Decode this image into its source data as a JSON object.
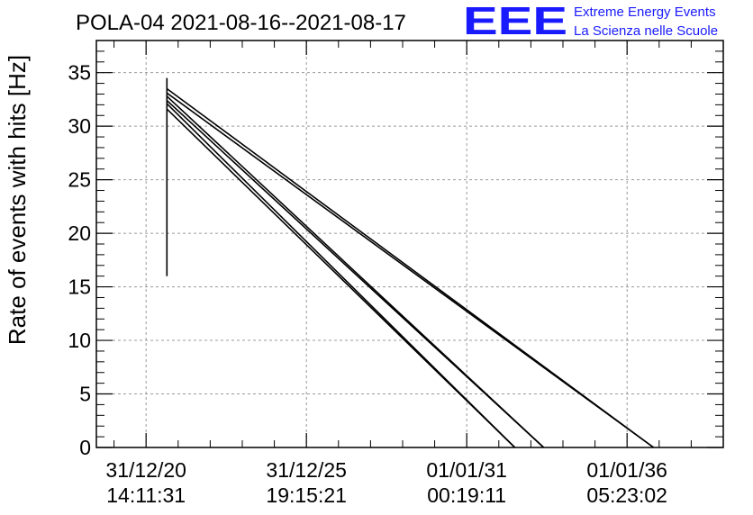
{
  "chart_data": {
    "type": "line",
    "title": "POLA-04 2021-08-16--2021-08-17",
    "ylabel": "Rate of events with hits [Hz]",
    "xlabel": "",
    "ylim": [
      0,
      38
    ],
    "xlim": [
      -0.62,
      7.2
    ],
    "y_ticks": [
      0,
      5,
      10,
      15,
      20,
      25,
      30,
      35
    ],
    "x_ticks": [
      {
        "x": 0,
        "line1": "31/12/20",
        "line2": "14:11:31"
      },
      {
        "x": 2,
        "line1": "31/12/25",
        "line2": "19:15:21"
      },
      {
        "x": 4,
        "line1": "01/01/31",
        "line2": "00:19:11"
      },
      {
        "x": 6,
        "line1": "01/01/36",
        "line2": "05:23:02"
      }
    ],
    "grid": true,
    "series": [
      {
        "values": [
          [
            0.26,
            16.0
          ],
          [
            0.26,
            34.5
          ]
        ]
      },
      {
        "values": [
          [
            0.26,
            33.5
          ],
          [
            6.33,
            0
          ]
        ]
      },
      {
        "values": [
          [
            0.26,
            33.1
          ],
          [
            6.33,
            0
          ]
        ]
      },
      {
        "values": [
          [
            0.26,
            32.8
          ],
          [
            4.96,
            0
          ]
        ]
      },
      {
        "values": [
          [
            0.26,
            32.4
          ],
          [
            4.96,
            0
          ]
        ]
      },
      {
        "values": [
          [
            0.26,
            32.1
          ],
          [
            4.6,
            0
          ]
        ]
      },
      {
        "values": [
          [
            0.26,
            31.6
          ],
          [
            4.6,
            0
          ]
        ]
      }
    ],
    "line_color": "#000000"
  },
  "logo": {
    "mark": "EEE",
    "line1": "Extreme Energy Events",
    "line2": "La Scienza nelle Scuole"
  }
}
